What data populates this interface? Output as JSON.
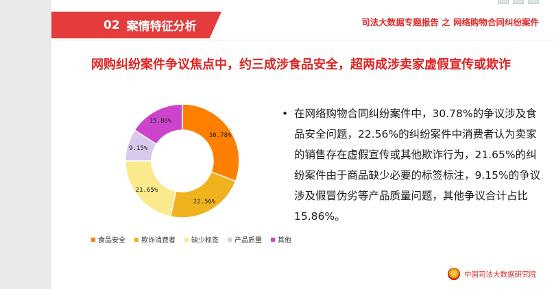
{
  "header": {
    "section_number": "02",
    "section_title": "案情特征分析",
    "report_title": "司法大数据专题报告 之 网络购物合同纠纷案件"
  },
  "headline": "网购纠纷案件争议焦点中，约三成涉食品安全，超两成涉卖家虚假宣传或欺诈",
  "bullet": {
    "marker": "•",
    "text": "在网络购物合同纠纷案件中，30.78%的争议涉及食品安全问题，22.56%的纠纷案件中消费者认为卖家的销售存在虚假宣传或其他欺诈行为，21.65%的纠纷案件由于商品缺少必要的标签标注，9.15%的争议涉及假冒伪劣等产品质量问题，其他争议合计占比15.86%。"
  },
  "footer": {
    "org": "中国司法大数据研究院"
  },
  "chart_data": {
    "type": "pie",
    "hole": true,
    "categories": [
      "食品安全",
      "欺诈消费者",
      "缺少标签",
      "产品质量",
      "其他"
    ],
    "values": [
      30.78,
      22.56,
      21.65,
      9.15,
      15.86
    ],
    "labels": [
      "30.78%",
      "22.56%",
      "21.65%",
      "9.15%",
      "15.86%"
    ],
    "colors": [
      "#ff7f00",
      "#f0b21d",
      "#fbe98d",
      "#d8c9ee",
      "#cc44cc"
    ],
    "legend_position": "bottom-left"
  }
}
